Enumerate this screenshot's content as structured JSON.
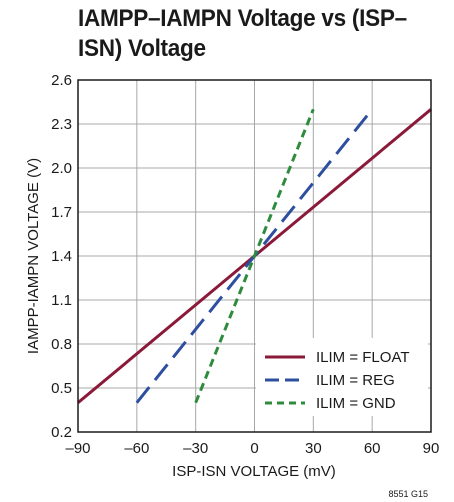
{
  "chart_data": {
    "type": "line",
    "title": "IAMPP–IAMPN Voltage vs (ISP–ISN) Voltage",
    "xlabel": "ISP-ISN VOLTAGE (mV)",
    "ylabel": "IAMPP-IAMPN VOLTAGE (V)",
    "xlim": [
      -90,
      90
    ],
    "ylim": [
      0.2,
      2.6
    ],
    "xticks": [
      "–90",
      "–60",
      "–30",
      "0",
      "30",
      "60",
      "90"
    ],
    "xtick_values": [
      -90,
      -60,
      -30,
      0,
      30,
      60,
      90
    ],
    "yticks": [
      "0.2",
      "0.5",
      "0.8",
      "1.1",
      "1.4",
      "1.7",
      "2.0",
      "2.3",
      "2.6"
    ],
    "ytick_values": [
      0.2,
      0.5,
      0.8,
      1.1,
      1.4,
      1.7,
      2.0,
      2.3,
      2.6
    ],
    "grid": true,
    "legend_position": "bottom-right",
    "figure_id": "8551 G15",
    "series": [
      {
        "name": "ILIM = FLOAT",
        "style": "solid",
        "color": "#8b1a3a",
        "x": [
          -90,
          90
        ],
        "y": [
          0.4,
          2.4
        ]
      },
      {
        "name": "ILIM = REG",
        "style": "long-dash",
        "color": "#2e4fa0",
        "x": [
          -60,
          60
        ],
        "y": [
          0.4,
          2.4
        ]
      },
      {
        "name": "ILIM = GND",
        "style": "short-dash",
        "color": "#2e8b3e",
        "x": [
          -30,
          30
        ],
        "y": [
          0.4,
          2.4
        ]
      }
    ]
  }
}
